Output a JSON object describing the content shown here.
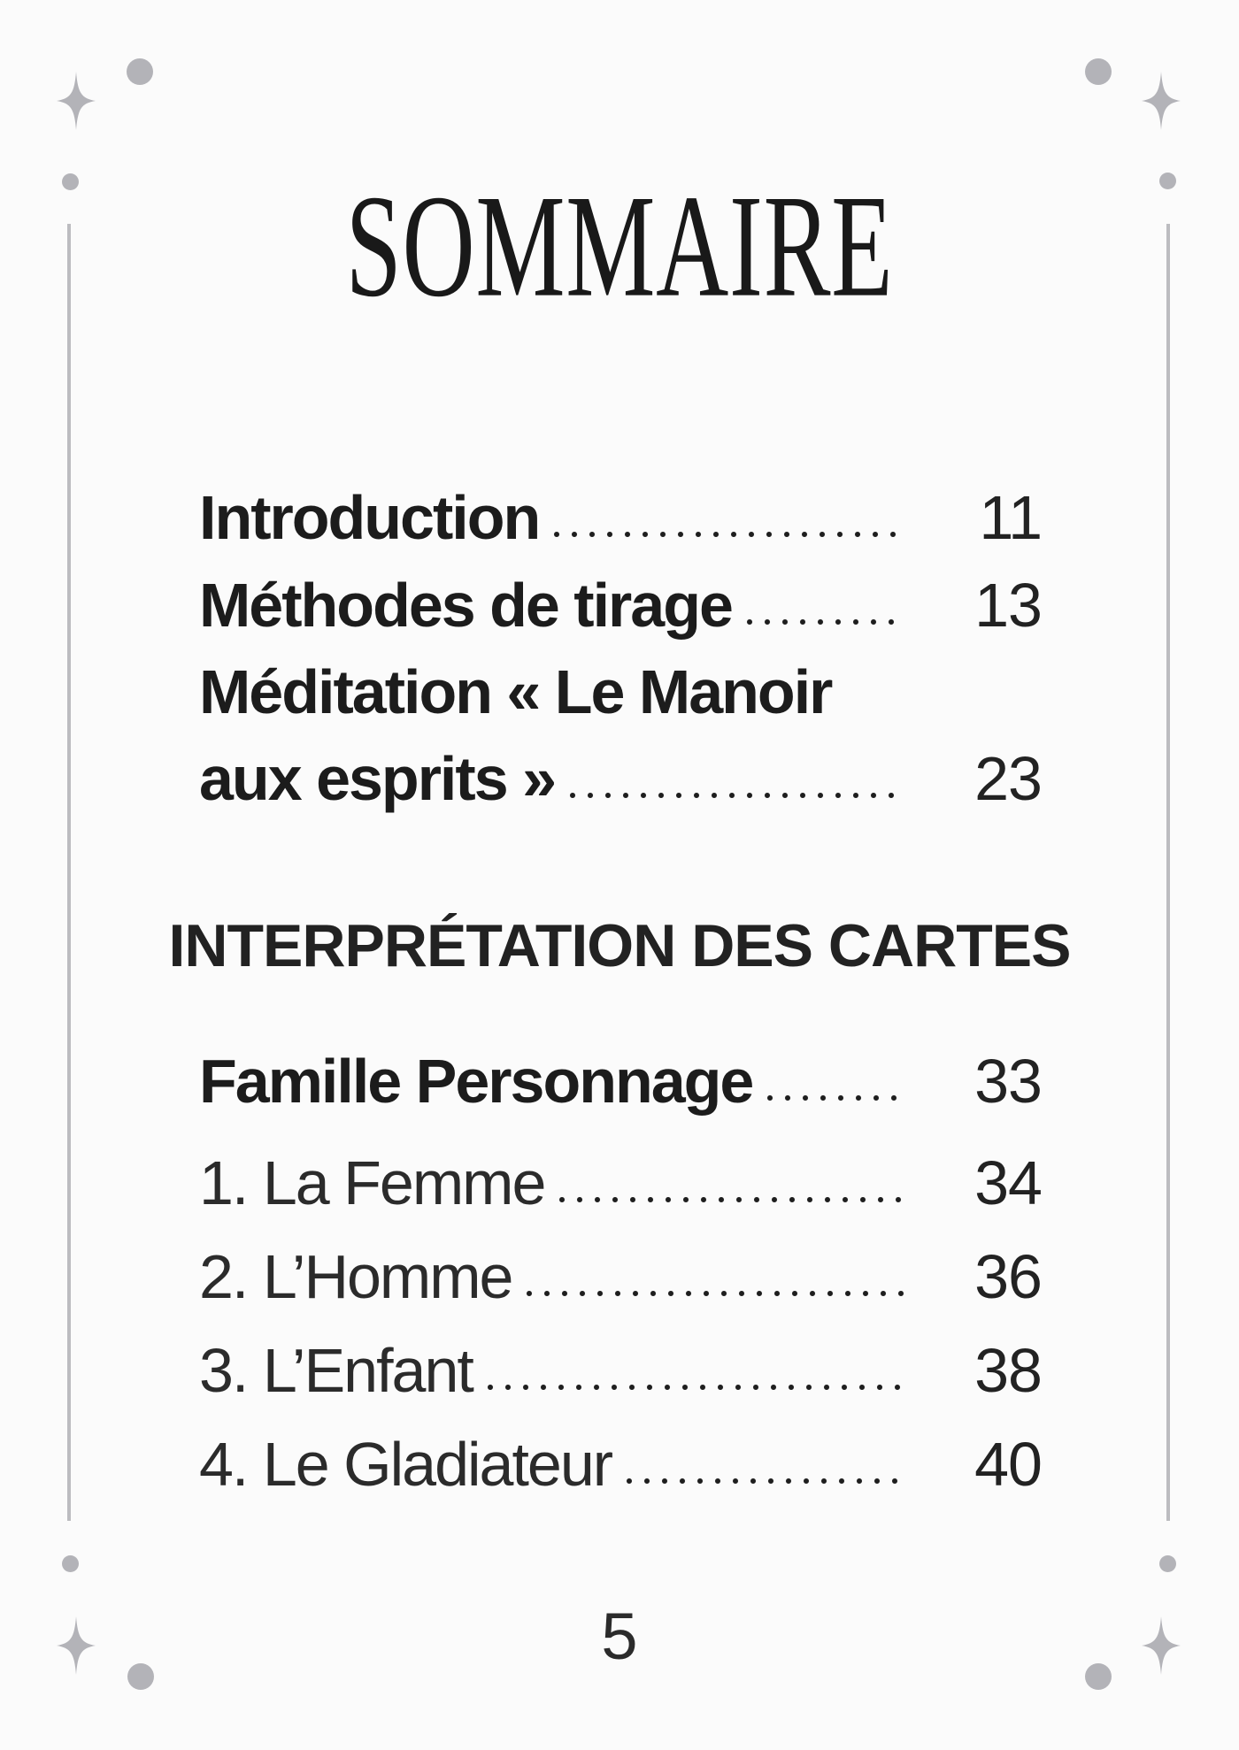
{
  "page": {
    "title": "SOMMAIRE",
    "folio": "5",
    "background": "#fbfbfb",
    "text_color": "#1f1f1f",
    "decoration_color": "#b3b3b8"
  },
  "toc": {
    "section_header": "INTERPRÉTATION DES CARTES",
    "groups": [
      {
        "name": "front",
        "entries": [
          {
            "label": "Introduction",
            "page": "11",
            "weight": "bold",
            "leader": true
          },
          {
            "label": "Méthodes de tirage",
            "page": "13",
            "weight": "bold",
            "leader": true
          },
          {
            "label": "Méditation « Le Manoir",
            "page": "",
            "weight": "bold",
            "leader": false
          },
          {
            "label": "aux esprits »",
            "page": "23",
            "weight": "bold",
            "leader": true
          }
        ]
      },
      {
        "name": "cards",
        "entries": [
          {
            "label": "Famille Personnage",
            "page": "33",
            "weight": "bold",
            "leader": true
          },
          {
            "label": "1. La Femme",
            "page": "34",
            "weight": "regular",
            "leader": true
          },
          {
            "label": "2. L’Homme",
            "page": "36",
            "weight": "regular",
            "leader": true
          },
          {
            "label": "3. L’Enfant",
            "page": "38",
            "weight": "regular",
            "leader": true
          },
          {
            "label": "4. Le Gladiateur",
            "page": "40",
            "weight": "regular",
            "leader": true
          }
        ]
      }
    ]
  }
}
